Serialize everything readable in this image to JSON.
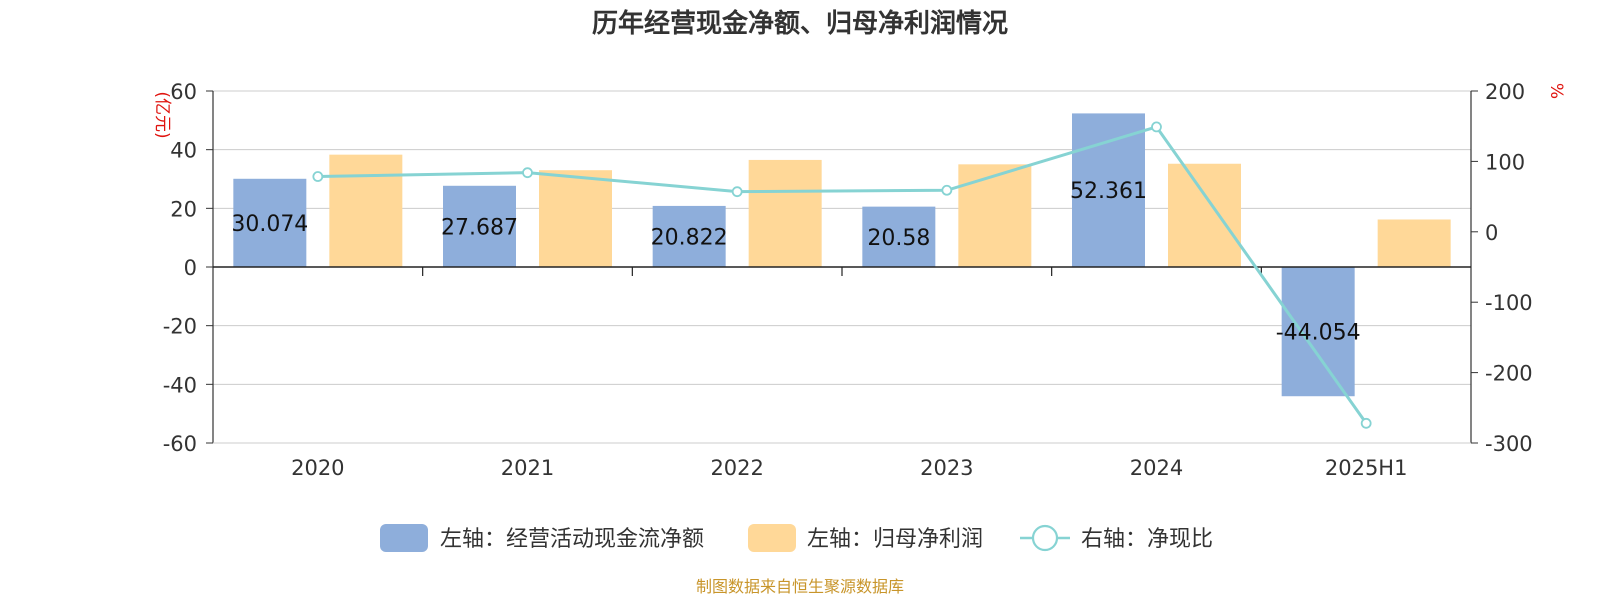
{
  "chart_data": {
    "type": "bar",
    "title": "历年经营现金净额、归母净利润情况",
    "categories": [
      "2020",
      "2021",
      "2022",
      "2023",
      "2024",
      "2025H1"
    ],
    "left_axis": {
      "unit": "(亿元)",
      "ylim": [
        -60,
        60
      ],
      "ticks": [
        "60",
        "40",
        "20",
        "0",
        "-20",
        "-40",
        "-60"
      ],
      "tick_values": [
        60,
        40,
        20,
        0,
        -20,
        -40,
        -60
      ]
    },
    "right_axis": {
      "unit": "%",
      "ylim": [
        -300,
        200
      ],
      "ticks": [
        "200",
        "100",
        "0",
        "-100",
        "-200",
        "-300"
      ],
      "tick_values": [
        200,
        100,
        0,
        -100,
        -200,
        -300
      ]
    },
    "series": [
      {
        "name": "左轴：经营活动现金流净额",
        "kind": "bar",
        "axis": "left",
        "color": "#8eaedb",
        "values": [
          30.074,
          27.687,
          20.822,
          20.58,
          52.361,
          -44.054
        ],
        "labels": [
          "30.074",
          "27.687",
          "20.822",
          "20.58",
          "52.361",
          "-44.054"
        ]
      },
      {
        "name": "左轴：归母净利润",
        "kind": "bar",
        "axis": "left",
        "color": "#ffd898",
        "values": [
          38.3,
          33.0,
          36.5,
          35.0,
          35.2,
          16.2
        ]
      },
      {
        "name": "右轴：净现比",
        "kind": "line",
        "axis": "right",
        "color": "#86d3d3",
        "values": [
          78.5,
          84.0,
          57.0,
          59.0,
          149.0,
          -272.0
        ]
      }
    ],
    "grid": true,
    "legend_position": "bottom"
  },
  "source": "制图数据来自恒生聚源数据库"
}
